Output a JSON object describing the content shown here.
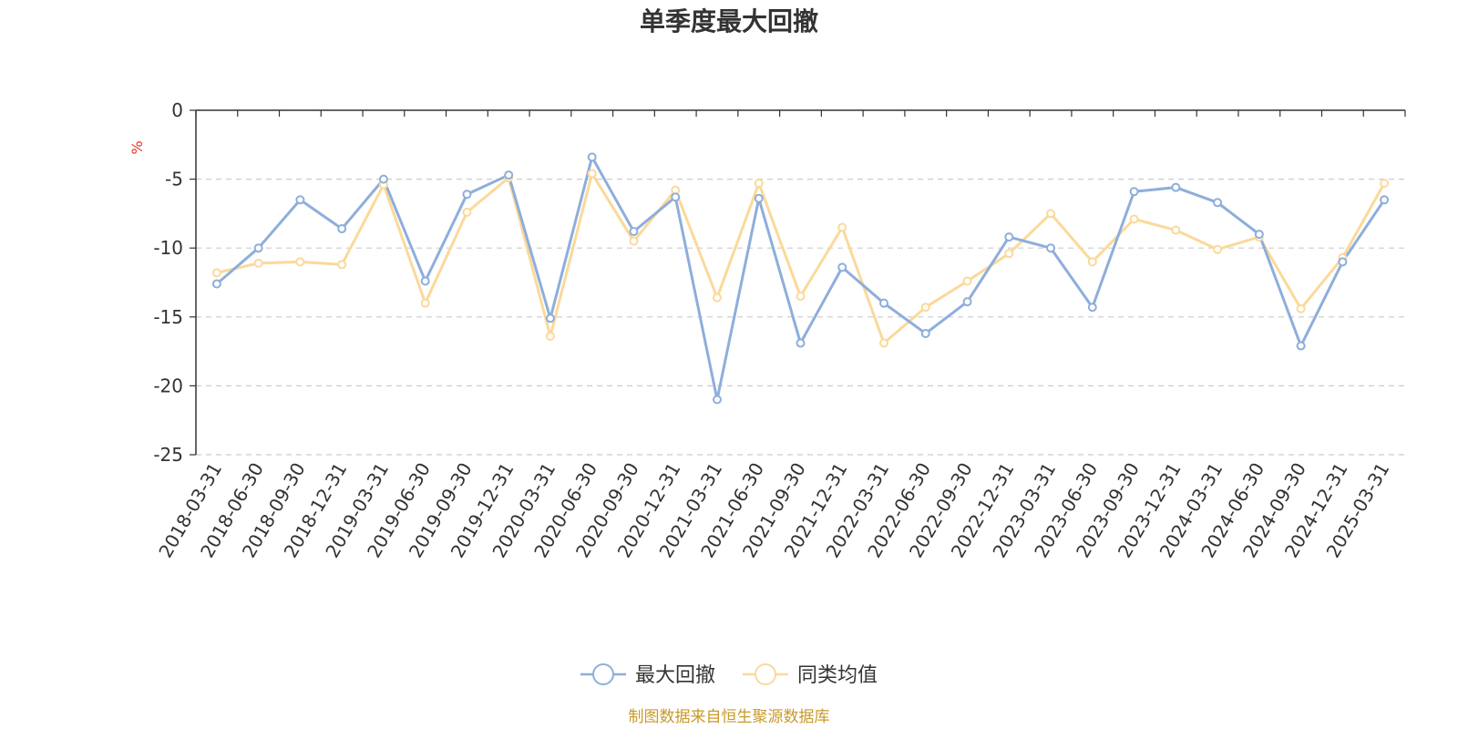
{
  "chart_data": {
    "type": "line",
    "title": "单季度最大回撤",
    "ylabel": "%",
    "ylim": [
      -25,
      0
    ],
    "yticks": [
      0,
      -5,
      -10,
      -15,
      -20,
      -25
    ],
    "grid": true,
    "legend_position": "bottom",
    "categories": [
      "2018-03-31",
      "2018-06-30",
      "2018-09-30",
      "2018-12-31",
      "2019-03-31",
      "2019-06-30",
      "2019-09-30",
      "2019-12-31",
      "2020-03-31",
      "2020-06-30",
      "2020-09-30",
      "2020-12-31",
      "2021-03-31",
      "2021-06-30",
      "2021-09-30",
      "2021-12-31",
      "2022-03-31",
      "2022-06-30",
      "2022-09-30",
      "2022-12-31",
      "2023-03-31",
      "2023-06-30",
      "2023-09-30",
      "2023-12-31",
      "2024-03-31",
      "2024-06-30",
      "2024-09-30",
      "2024-12-31",
      "2025-03-31"
    ],
    "series": [
      {
        "name": "最大回撤",
        "color": "#8eaedb",
        "values": [
          -12.6,
          -10.0,
          -6.5,
          -8.6,
          -5.0,
          -12.4,
          -6.1,
          -4.7,
          -15.1,
          -3.4,
          -8.8,
          -6.3,
          -21.0,
          -6.4,
          -16.9,
          -11.4,
          -14.0,
          -16.2,
          -13.9,
          -9.2,
          -10.0,
          -14.3,
          -5.9,
          -5.6,
          -6.7,
          -9.0,
          -17.1,
          -11.0,
          -6.5
        ]
      },
      {
        "name": "同类均值",
        "color": "#fbd99a",
        "values": [
          -11.8,
          -11.1,
          -11.0,
          -11.2,
          -5.4,
          -14.0,
          -7.4,
          -4.9,
          -16.4,
          -4.6,
          -9.5,
          -5.8,
          -13.6,
          -5.3,
          -13.5,
          -8.5,
          -16.9,
          -14.3,
          -12.4,
          -10.4,
          -7.5,
          -11.0,
          -7.9,
          -8.7,
          -10.1,
          -9.2,
          -14.4,
          -10.7,
          -5.3
        ]
      }
    ]
  },
  "source_note": "制图数据来自恒生聚源数据库",
  "colors": {
    "axis": "#333333",
    "grid": "#cccccc",
    "unit": "#e8332b",
    "source": "#c89a2a"
  }
}
